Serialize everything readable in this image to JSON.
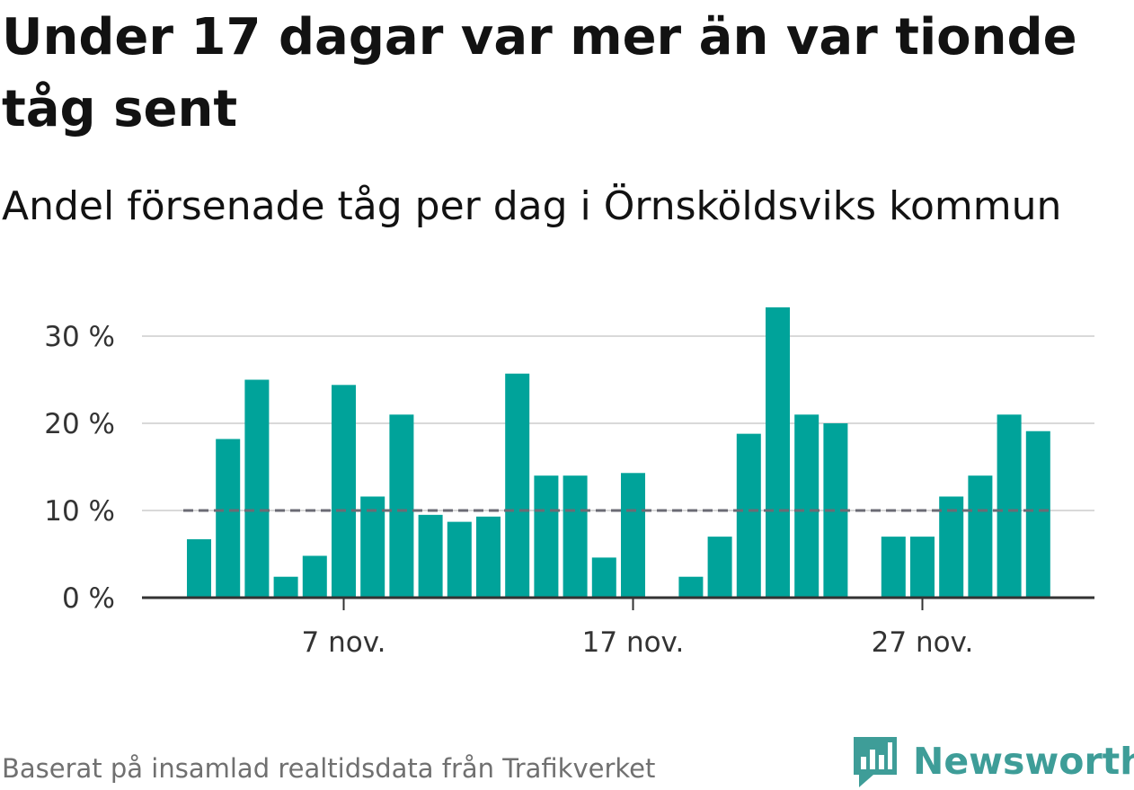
{
  "title": "Under 17 dagar var mer än var tionde tåg sent",
  "subtitle": "Andel försenade tåg per dag i Örnsköldsviks kommun",
  "footer": "Baserat på insamlad realtidsdata från Trafikverket",
  "brand": {
    "name": "Newsworthy",
    "icon": "newsworthy-logo-icon",
    "color": "#3e9d98"
  },
  "colors": {
    "bar": "#00a39a",
    "grid": "#d9d9d9",
    "reference": "#6b6b74",
    "axis": "#333333"
  },
  "chart_data": {
    "type": "bar",
    "x": [
      "2 nov.",
      "3 nov.",
      "4 nov.",
      "5 nov.",
      "6 nov.",
      "7 nov.",
      "8 nov.",
      "9 nov.",
      "10 nov.",
      "11 nov.",
      "12 nov.",
      "13 nov.",
      "14 nov.",
      "15 nov.",
      "16 nov.",
      "17 nov.",
      "18 nov.",
      "19 nov.",
      "20 nov.",
      "21 nov.",
      "22 nov.",
      "23 nov.",
      "24 nov.",
      "25 nov.",
      "26 nov.",
      "27 nov.",
      "28 nov.",
      "29 nov.",
      "30 nov.",
      "1 dec."
    ],
    "values": [
      6.7,
      18.2,
      25.0,
      2.4,
      4.8,
      24.4,
      11.6,
      21.0,
      9.5,
      8.7,
      9.3,
      25.7,
      14.0,
      14.0,
      4.6,
      14.3,
      null,
      2.4,
      7.0,
      18.8,
      33.3,
      21.0,
      20.0,
      null,
      7.0,
      7.0,
      11.6,
      14.0,
      21.0,
      19.1
    ],
    "reference_line": 10,
    "xticks": [
      "7 nov.",
      "17 nov.",
      "27 nov."
    ],
    "ytick_values": [
      0,
      10,
      20,
      30
    ],
    "ytick_labels": [
      "0 %",
      "10 %",
      "20 %",
      "30 %"
    ],
    "ylim": [
      0,
      35
    ],
    "grid": true
  }
}
